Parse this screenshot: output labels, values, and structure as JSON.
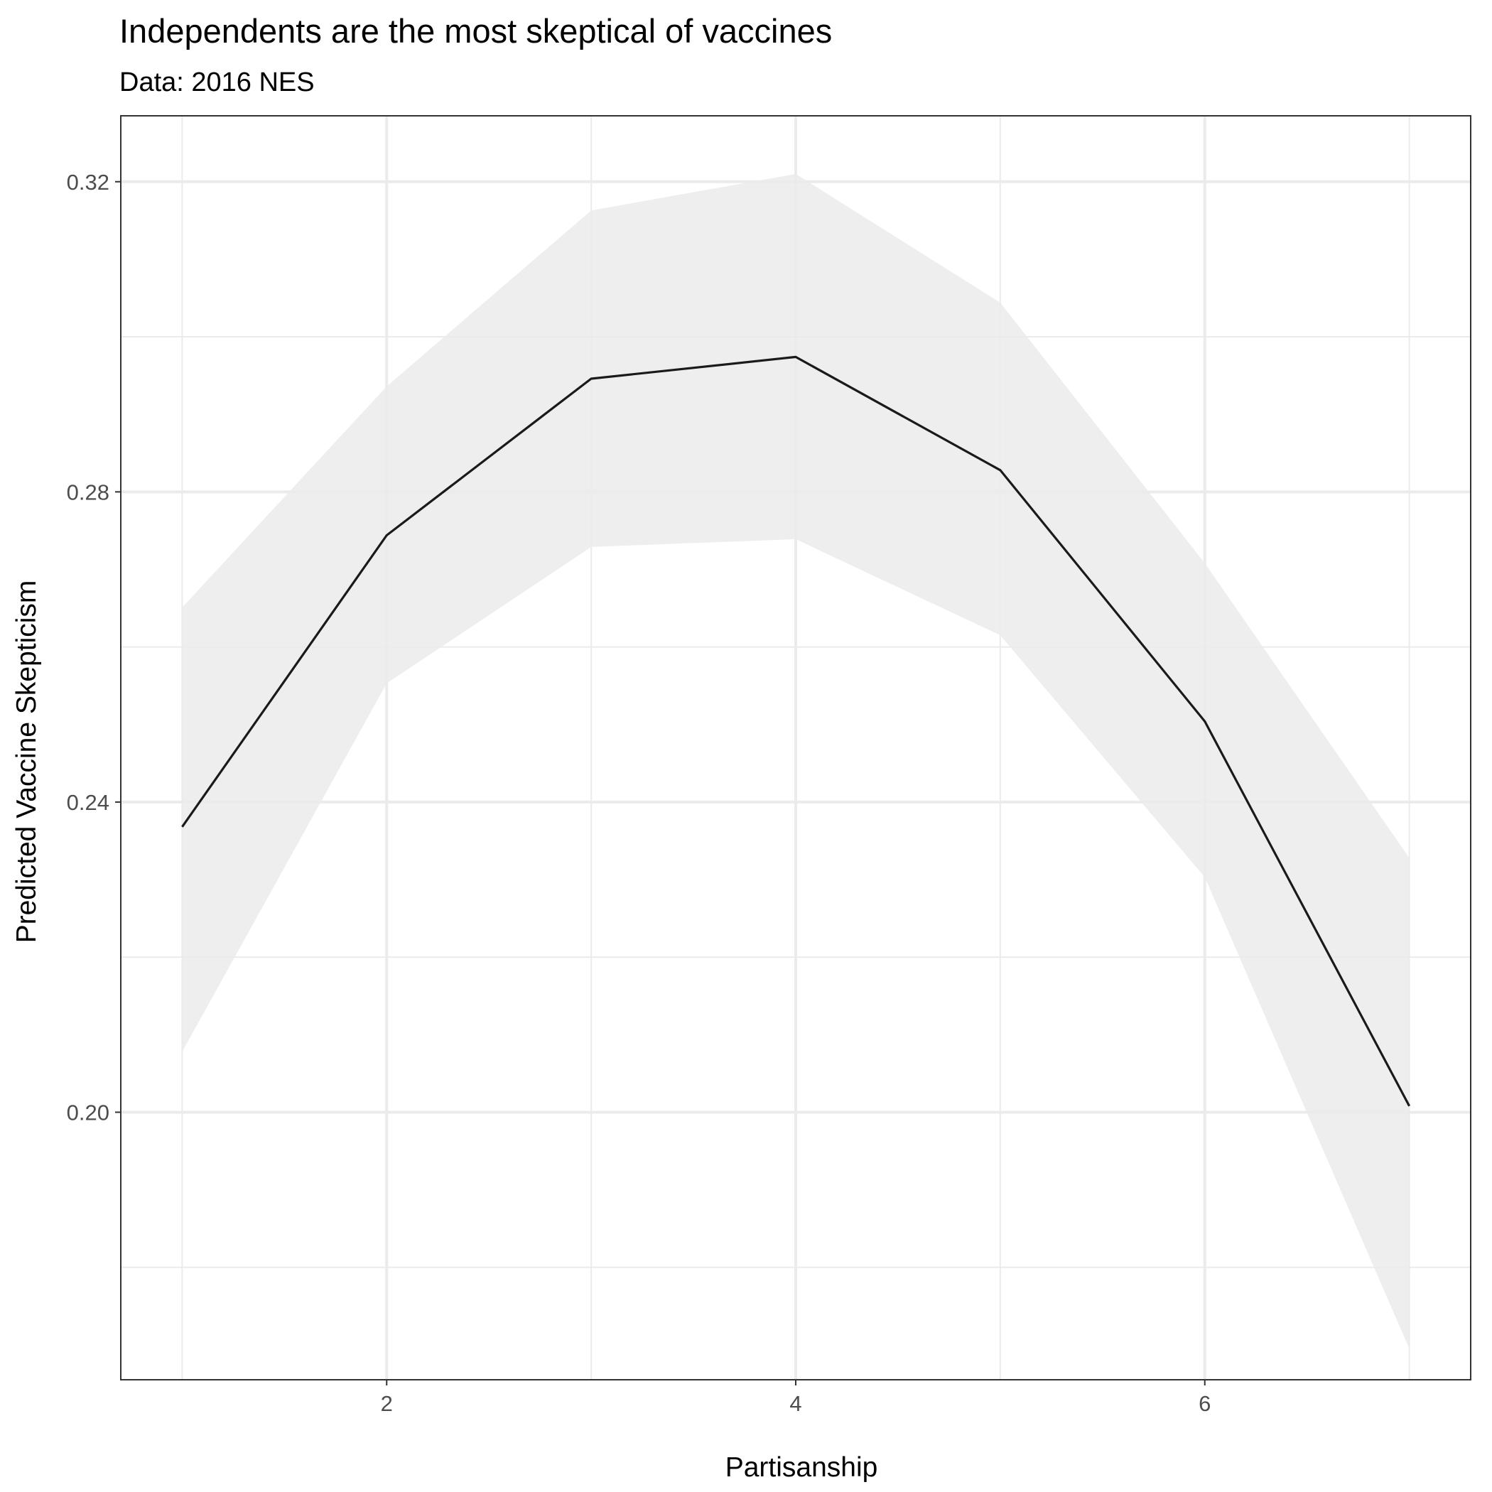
{
  "chart_data": {
    "type": "line",
    "title": "Independents are the most skeptical of vaccines",
    "subtitle": "Data: 2016 NES",
    "xlabel": "Partisanship",
    "ylabel": "Predicted Vaccine Skepticism",
    "x": [
      1,
      2,
      3,
      4,
      5,
      6,
      7
    ],
    "series": [
      {
        "values": [
          0.2368,
          0.2744,
          0.2946,
          0.2974,
          0.2828,
          0.2504,
          0.2008
        ],
        "ci_lower": [
          0.2078,
          0.2553,
          0.2729,
          0.2739,
          0.2615,
          0.2303,
          0.1695
        ],
        "ci_upper": [
          0.2651,
          0.2936,
          0.3163,
          0.321,
          0.3044,
          0.2708,
          0.2328
        ]
      }
    ],
    "xlim": [
      0.7,
      7.3
    ],
    "ylim": [
      0.1655,
      0.3285
    ],
    "xticks": [
      2,
      4,
      6
    ],
    "xtick_labels": [
      "2",
      "4",
      "6"
    ],
    "yticks": [
      0.2,
      0.24,
      0.28,
      0.32
    ],
    "ytick_labels": [
      "0.20",
      "0.24",
      "0.28",
      "0.32"
    ],
    "grid": true,
    "legend": "none",
    "colors": {
      "line": "#1a1a1a",
      "ribbon": "#ebebeb",
      "grid": "#ebebeb",
      "panel_border": "#333333",
      "tick_text": "#4d4d4d"
    }
  }
}
